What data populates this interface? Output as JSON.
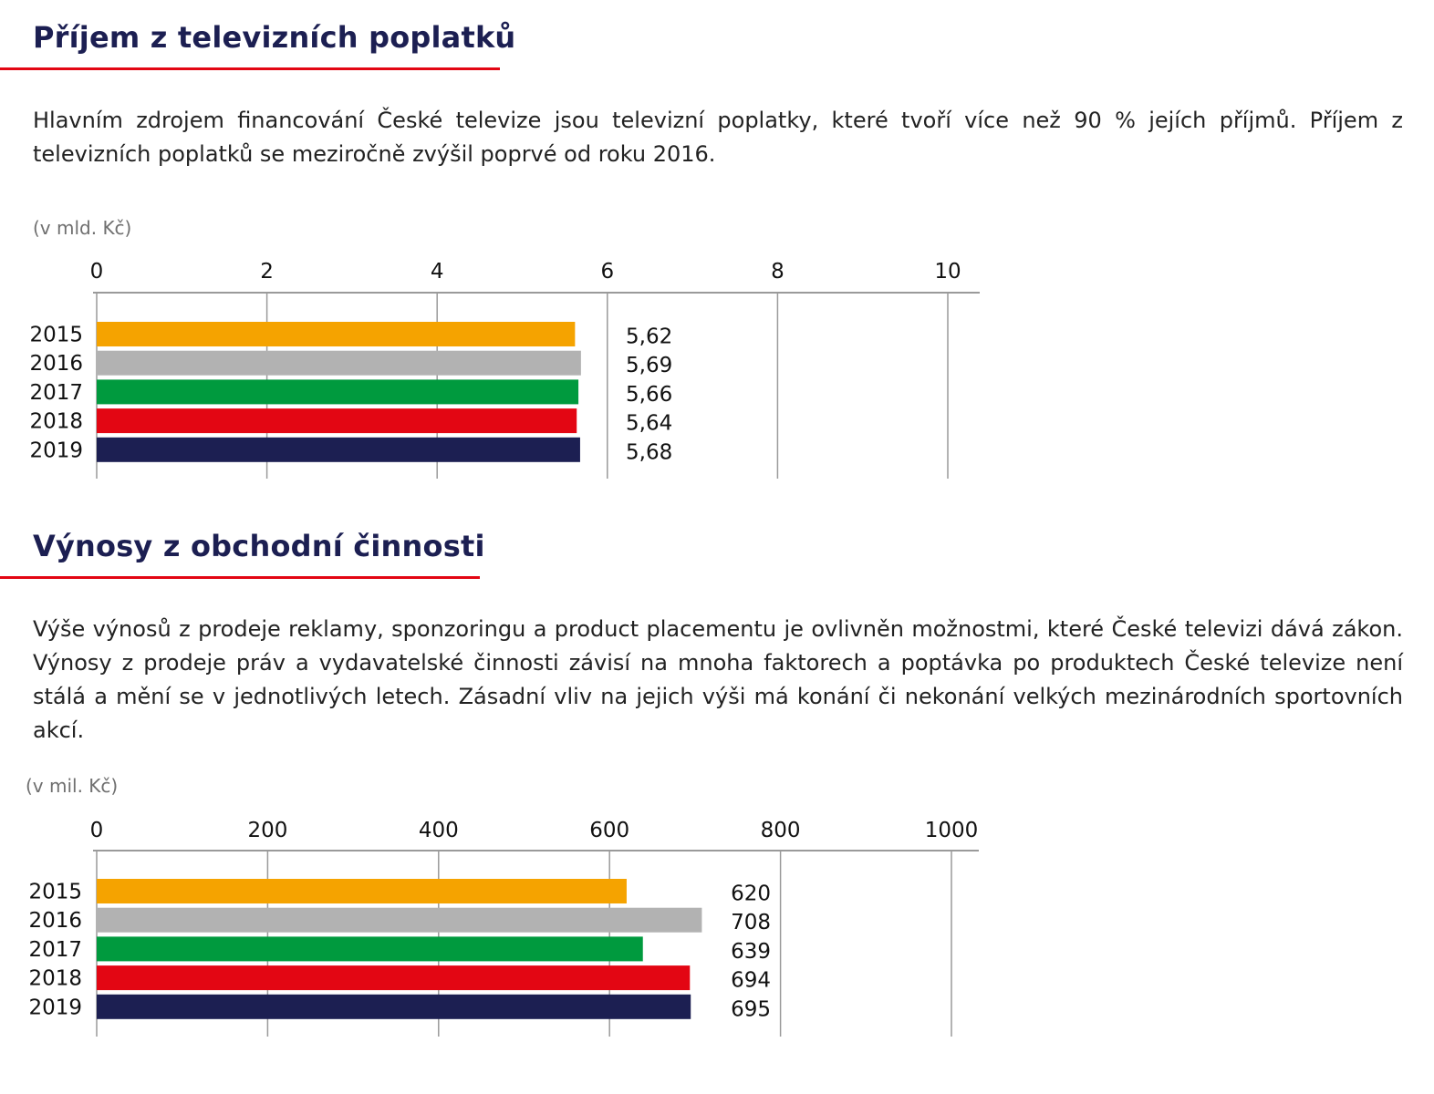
{
  "sections": [
    {
      "title": "Příjem z televizních poplatků",
      "intro": "Hlavním zdrojem financování České televize jsou televizní poplatky, které tvoří více než 90 % jejích příjmů. Příjem z televizních poplatků se meziročně zvýšil poprvé od roku 2016.",
      "unit": "(v mld. Kč)"
    },
    {
      "title": "Výnosy z obchodní činnosti",
      "intro": "Výše výnosů z prodeje reklamy, sponzoringu a product placementu je ovlivněn možnostmi, které České televizi dává zákon. Výnosy z prodeje práv a vydavatelské činnosti závisí na mnoha faktorech a poptávka po produktech České televize není stálá a mění se v jednotlivých letech. Zásadní vliv na jejich výši má konání či nekonání velkých mezinárodních sportovních akcí.",
      "unit": "(v mil. Kč)"
    }
  ],
  "colors": {
    "title": "#1c1f52",
    "rule": "#e30613",
    "2015": "#f5a300",
    "2016": "#b2b2b2",
    "2017": "#009a3e",
    "2018": "#e30613",
    "2019": "#1c1f52"
  },
  "chart_data": [
    {
      "type": "bar",
      "orientation": "horizontal",
      "categories": [
        "2015",
        "2016",
        "2017",
        "2018",
        "2019"
      ],
      "values": [
        5.62,
        5.69,
        5.66,
        5.64,
        5.68
      ],
      "value_labels": [
        "5,62",
        "5,69",
        "5,66",
        "5,64",
        "5,68"
      ],
      "xticks": [
        0,
        2,
        4,
        6,
        8,
        10
      ],
      "xtick_labels": [
        "0",
        "2",
        "4",
        "6",
        "8",
        "10"
      ],
      "xlim": [
        0,
        10
      ],
      "axis_position": "top",
      "grid": true,
      "ylabel": "",
      "xlabel": ""
    },
    {
      "type": "bar",
      "orientation": "horizontal",
      "categories": [
        "2015",
        "2016",
        "2017",
        "2018",
        "2019"
      ],
      "values": [
        620,
        708,
        639,
        694,
        695
      ],
      "value_labels": [
        "620",
        "708",
        "639",
        "694",
        "695"
      ],
      "xticks": [
        0,
        200,
        400,
        600,
        800,
        1000
      ],
      "xtick_labels": [
        "0",
        "200",
        "400",
        "600",
        "800",
        "1000"
      ],
      "xlim": [
        0,
        1000
      ],
      "axis_position": "top",
      "grid": true,
      "ylabel": "",
      "xlabel": ""
    }
  ]
}
